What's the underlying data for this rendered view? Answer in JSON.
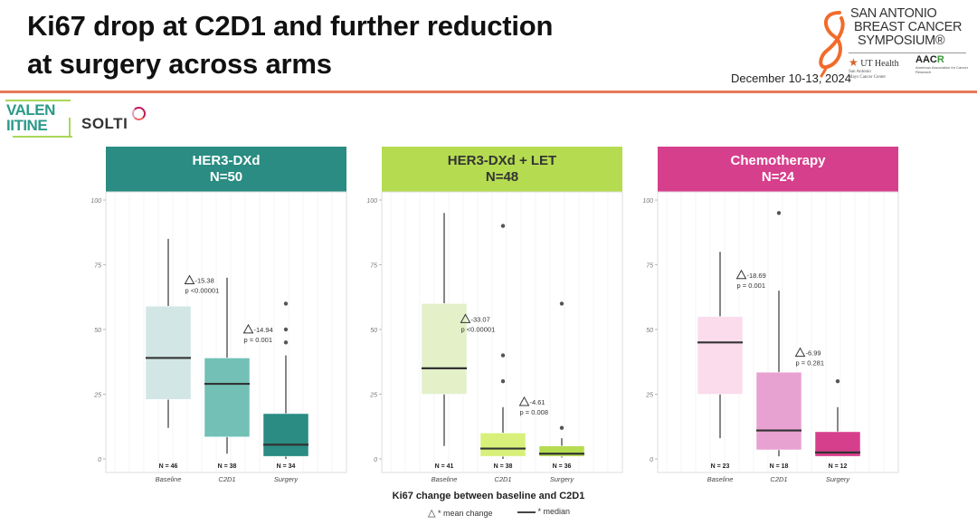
{
  "slide": {
    "title_line1": "Ki67 drop at C2D1 and further reduction",
    "title_line2": "at surgery across arms",
    "date": "December 10-13, 2024",
    "rule_color": "#e8785a"
  },
  "logos": {
    "sabcs": [
      "SAN ANTONIO",
      "BREAST CANCER",
      "SYMPOSIUM®"
    ],
    "ut_health": "UT Health",
    "ut_health_sub1": "San Antonio",
    "ut_health_sub2": "Mays Cancer Center",
    "aacr": "AAC",
    "aacr_r": "R",
    "aacr_sub": "American Association for Cancer Research",
    "valentine_1": "VALEN",
    "valentine_2": "IITINE",
    "solti": "SOLTI"
  },
  "chart_data": {
    "type": "box",
    "xlabel": "Ki67 change between baseline and C2D1",
    "ylabel": "",
    "ylim": [
      0,
      100
    ],
    "yticks": [
      "0",
      "25",
      "50",
      "75",
      "100"
    ],
    "categories": [
      "Baseline",
      "C2D1",
      "Surgery"
    ],
    "legend": {
      "mean": "* mean change",
      "median": "* median",
      "placement": "bottom"
    },
    "panels": [
      {
        "title": "HER3-DXd",
        "n": "N=50",
        "header_color": "#2a8c82",
        "header_text_dark": false,
        "box_colors": [
          "#d2e6e5",
          "#72c0b6",
          "#2a8c82"
        ],
        "boxes": [
          {
            "label": "Baseline",
            "n_label": "N = 46",
            "whisker_low": 12,
            "q1": 23,
            "median": 39,
            "q3": 59,
            "whisker_high": 85,
            "outliers": []
          },
          {
            "label": "C2D1",
            "n_label": "N = 38",
            "whisker_low": 2,
            "q1": 8.5,
            "median": 29,
            "q3": 39,
            "whisker_high": 70,
            "outliers": []
          },
          {
            "label": "Surgery",
            "n_label": "N = 34",
            "whisker_low": 0,
            "q1": 1,
            "median": 5.5,
            "q3": 17.5,
            "whisker_high": 40,
            "outliers": [
              45,
              50,
              60
            ]
          }
        ],
        "annotations": [
          {
            "delta": "-15.38",
            "p": "p <0.00001",
            "between": "Baseline-C2D1",
            "y": 68
          },
          {
            "delta": "-14.94",
            "p": "p = 0.001",
            "between": "C2D1-Surgery",
            "y": 49
          }
        ]
      },
      {
        "title": "HER3-DXd + LET",
        "n": "N=48",
        "header_color": "#b5dc50",
        "header_text_dark": true,
        "box_colors": [
          "#e3f0c8",
          "#d8f07a",
          "#b5dc50"
        ],
        "boxes": [
          {
            "label": "Baseline",
            "n_label": "N = 41",
            "whisker_low": 5,
            "q1": 25,
            "median": 35,
            "q3": 60,
            "whisker_high": 95,
            "outliers": []
          },
          {
            "label": "C2D1",
            "n_label": "N = 38",
            "whisker_low": 0,
            "q1": 1,
            "median": 4,
            "q3": 10,
            "whisker_high": 20,
            "outliers": [
              30,
              40,
              90
            ]
          },
          {
            "label": "Surgery",
            "n_label": "N = 36",
            "whisker_low": 0.5,
            "q1": 1,
            "median": 2,
            "q3": 5,
            "whisker_high": 8,
            "outliers": [
              12,
              60
            ]
          }
        ],
        "annotations": [
          {
            "delta": "-33.07",
            "p": "p <0.00001",
            "between": "Baseline-C2D1",
            "y": 53
          },
          {
            "delta": "-4.61",
            "p": "p = 0.008",
            "between": "C2D1-Surgery",
            "y": 21
          }
        ]
      },
      {
        "title": "Chemotherapy",
        "n": "N=24",
        "header_color": "#d63f8c",
        "header_text_dark": false,
        "box_colors": [
          "#fadcec",
          "#e8a2d2",
          "#d63f8c"
        ],
        "boxes": [
          {
            "label": "Baseline",
            "n_label": "N = 23",
            "whisker_low": 8,
            "q1": 25,
            "median": 45,
            "q3": 55,
            "whisker_high": 80,
            "outliers": []
          },
          {
            "label": "C2D1",
            "n_label": "N = 18",
            "whisker_low": 1,
            "q1": 3.5,
            "median": 11,
            "q3": 33.5,
            "whisker_high": 65,
            "outliers": [
              95
            ]
          },
          {
            "label": "Surgery",
            "n_label": "N = 12",
            "whisker_low": 1,
            "q1": 1,
            "median": 2.5,
            "q3": 10.5,
            "whisker_high": 20,
            "outliers": [
              30
            ]
          }
        ],
        "annotations": [
          {
            "delta": "-18.69",
            "p": "p = 0.001",
            "between": "Baseline-C2D1",
            "y": 70
          },
          {
            "delta": "-6.99",
            "p": "p = 0.281",
            "between": "C2D1-Surgery",
            "y": 40
          }
        ]
      }
    ]
  }
}
